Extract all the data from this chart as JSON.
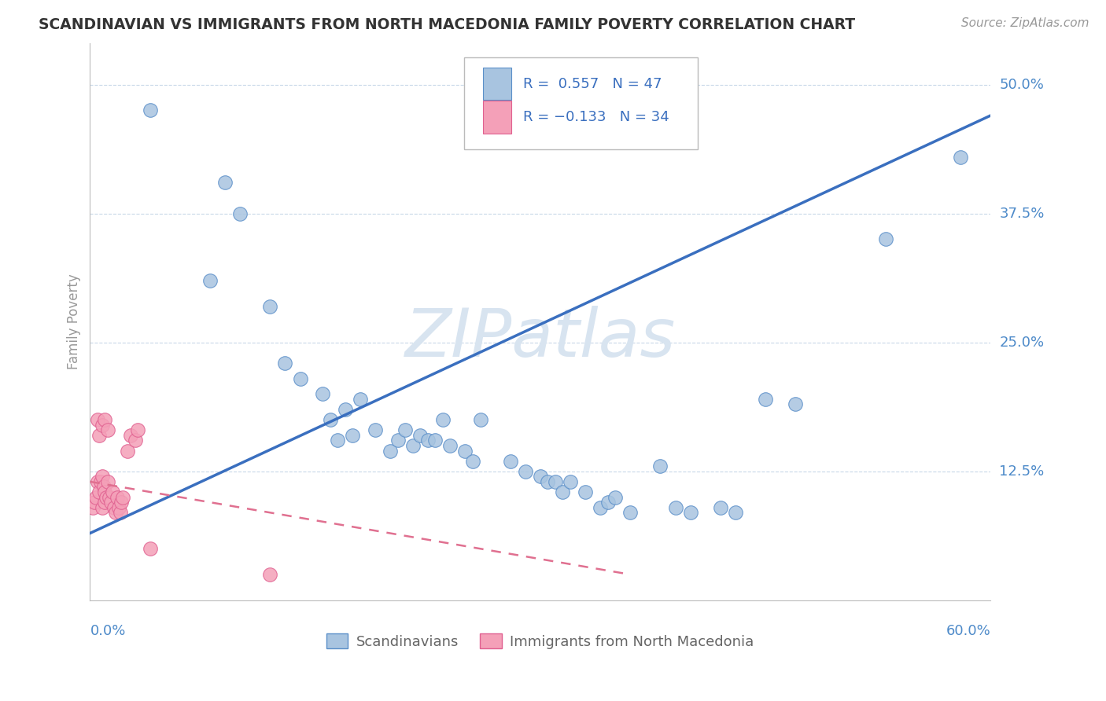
{
  "title": "SCANDINAVIAN VS IMMIGRANTS FROM NORTH MACEDONIA FAMILY POVERTY CORRELATION CHART",
  "source": "Source: ZipAtlas.com",
  "xlabel_bottom_left": "0.0%",
  "xlabel_bottom_right": "60.0%",
  "ylabel": "Family Poverty",
  "ytick_labels": [
    "12.5%",
    "25.0%",
    "37.5%",
    "50.0%"
  ],
  "ytick_values": [
    0.125,
    0.25,
    0.375,
    0.5
  ],
  "xlim": [
    0.0,
    0.6
  ],
  "ylim": [
    0.0,
    0.54
  ],
  "blue_color": "#A8C4E0",
  "pink_color": "#F4A0B8",
  "blue_edge_color": "#5B8FC9",
  "pink_edge_color": "#E06090",
  "blue_line_color": "#3A6FBF",
  "pink_line_color": "#E07090",
  "title_color": "#333333",
  "axis_label_color": "#4D8AC9",
  "watermark_color": "#D8E4F0",
  "background_color": "#FFFFFF",
  "grid_color": "#C8D8E8",
  "legend_text_color": "#3A6FBF",
  "bottom_legend_color": "#666666",
  "scan_x": [
    0.04,
    0.08,
    0.09,
    0.1,
    0.12,
    0.13,
    0.14,
    0.155,
    0.16,
    0.165,
    0.17,
    0.175,
    0.18,
    0.19,
    0.2,
    0.205,
    0.21,
    0.215,
    0.22,
    0.225,
    0.23,
    0.235,
    0.24,
    0.25,
    0.255,
    0.26,
    0.28,
    0.29,
    0.3,
    0.305,
    0.31,
    0.315,
    0.32,
    0.33,
    0.34,
    0.345,
    0.35,
    0.36,
    0.38,
    0.39,
    0.4,
    0.42,
    0.43,
    0.45,
    0.47,
    0.53,
    0.58
  ],
  "scan_y": [
    0.475,
    0.31,
    0.405,
    0.375,
    0.285,
    0.23,
    0.215,
    0.2,
    0.175,
    0.155,
    0.185,
    0.16,
    0.195,
    0.165,
    0.145,
    0.155,
    0.165,
    0.15,
    0.16,
    0.155,
    0.155,
    0.175,
    0.15,
    0.145,
    0.135,
    0.175,
    0.135,
    0.125,
    0.12,
    0.115,
    0.115,
    0.105,
    0.115,
    0.105,
    0.09,
    0.095,
    0.1,
    0.085,
    0.13,
    0.09,
    0.085,
    0.09,
    0.085,
    0.195,
    0.19,
    0.35,
    0.43
  ],
  "mac_x": [
    0.002,
    0.003,
    0.004,
    0.005,
    0.006,
    0.007,
    0.008,
    0.008,
    0.009,
    0.01,
    0.01,
    0.011,
    0.012,
    0.013,
    0.014,
    0.015,
    0.016,
    0.017,
    0.018,
    0.019,
    0.02,
    0.021,
    0.022,
    0.025,
    0.027,
    0.03,
    0.032,
    0.005,
    0.006,
    0.008,
    0.01,
    0.012,
    0.04,
    0.12
  ],
  "mac_y": [
    0.09,
    0.095,
    0.1,
    0.115,
    0.105,
    0.115,
    0.12,
    0.09,
    0.11,
    0.105,
    0.095,
    0.1,
    0.115,
    0.1,
    0.095,
    0.105,
    0.09,
    0.085,
    0.1,
    0.09,
    0.085,
    0.095,
    0.1,
    0.145,
    0.16,
    0.155,
    0.165,
    0.175,
    0.16,
    0.17,
    0.175,
    0.165,
    0.05,
    0.025
  ],
  "blue_line_x": [
    0.0,
    0.6
  ],
  "blue_line_y": [
    0.065,
    0.47
  ],
  "pink_line_x": [
    0.0,
    0.36
  ],
  "pink_line_y": [
    0.115,
    0.025
  ]
}
